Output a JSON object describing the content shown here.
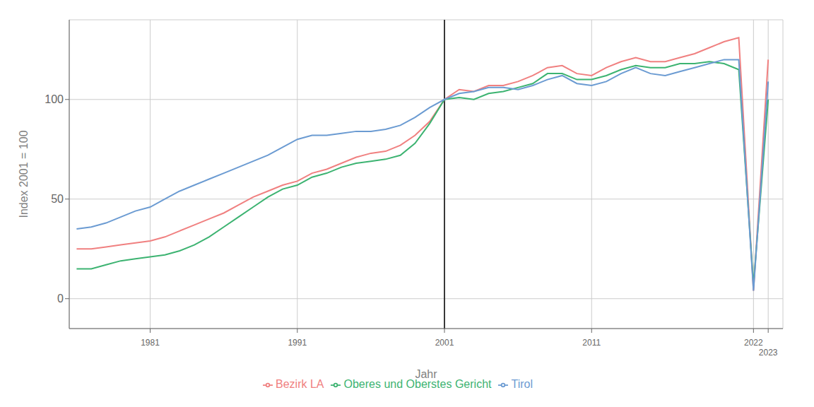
{
  "chart_data": {
    "type": "line",
    "xlabel": "Jahr",
    "ylabel": "Index 2001 = 100",
    "x": [
      1976,
      1977,
      1978,
      1979,
      1980,
      1981,
      1982,
      1983,
      1984,
      1985,
      1986,
      1987,
      1988,
      1989,
      1990,
      1991,
      1992,
      1993,
      1994,
      1995,
      1996,
      1997,
      1998,
      1999,
      2000,
      2001,
      2002,
      2003,
      2004,
      2005,
      2006,
      2007,
      2008,
      2009,
      2010,
      2011,
      2012,
      2013,
      2014,
      2015,
      2016,
      2017,
      2018,
      2019,
      2020,
      2021,
      2022,
      2023
    ],
    "series": [
      {
        "name": "Bezirk LA",
        "color": "#F08080",
        "values": [
          25,
          25,
          26,
          27,
          28,
          29,
          31,
          34,
          37,
          40,
          43,
          47,
          51,
          54,
          57,
          59,
          63,
          65,
          68,
          71,
          73,
          74,
          77,
          82,
          89,
          100,
          105,
          104,
          107,
          107,
          109,
          112,
          116,
          117,
          113,
          112,
          116,
          119,
          121,
          119,
          119,
          121,
          123,
          126,
          129,
          131,
          4,
          120
        ]
      },
      {
        "name": "Oberes und Oberstes Gericht",
        "color": "#3CB371",
        "values": [
          15,
          15,
          17,
          19,
          20,
          21,
          22,
          24,
          27,
          31,
          36,
          41,
          46,
          51,
          55,
          57,
          61,
          63,
          66,
          68,
          69,
          70,
          72,
          78,
          88,
          100,
          101,
          100,
          103,
          104,
          106,
          108,
          113,
          113,
          110,
          110,
          112,
          115,
          117,
          116,
          116,
          118,
          118,
          119,
          118,
          115,
          7,
          100
        ]
      },
      {
        "name": "Tirol",
        "color": "#6B9BD2",
        "values": [
          35,
          36,
          38,
          41,
          44,
          46,
          50,
          54,
          57,
          60,
          63,
          66,
          69,
          72,
          76,
          80,
          82,
          82,
          83,
          84,
          84,
          85,
          87,
          91,
          96,
          100,
          103,
          104,
          106,
          106,
          105,
          107,
          110,
          112,
          108,
          107,
          109,
          113,
          116,
          113,
          112,
          114,
          116,
          118,
          120,
          120,
          4,
          109
        ]
      }
    ],
    "xlim": [
      1975.5,
      2024
    ],
    "xticks": [
      1981,
      1991,
      2001,
      2011,
      2022,
      2023
    ],
    "ylim": [
      -15,
      140
    ],
    "yticks": [
      0,
      50,
      100
    ],
    "vline": {
      "x": 2001,
      "color": "#000000"
    },
    "grid": true,
    "legend": "bottom"
  }
}
